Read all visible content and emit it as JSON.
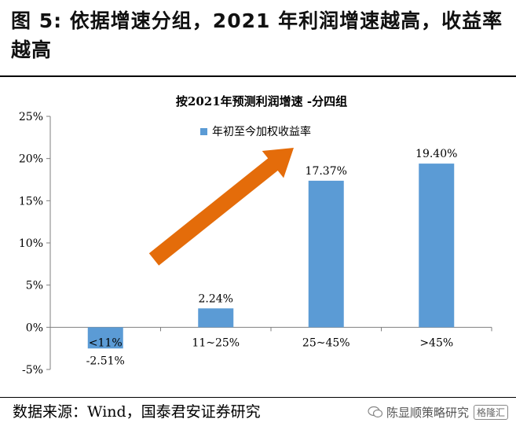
{
  "figure": {
    "title": "图 5: 依据增速分组，2021 年利润增速越高，收益率越高",
    "source": "数据来源：Wind，国泰君安证券研究",
    "watermark_text": "陈显顺策略研究",
    "watermark_badge": "格隆汇",
    "watermark_icon": "wechat-icon"
  },
  "colors": {
    "bar": "#5b9bd5",
    "arrow": "#e46c0a",
    "axis": "#7f7f7f"
  },
  "chart_data": {
    "type": "bar",
    "title": "按2021年预测利润增速 -分四组",
    "categories": [
      "<11%",
      "11~25%",
      "25~45%",
      ">45%"
    ],
    "series": [
      {
        "name": "年初至今加权收益率",
        "values": [
          -2.51,
          2.24,
          17.37,
          19.4
        ],
        "labels": [
          "-2.51%",
          "2.24%",
          "17.37%",
          "19.40%"
        ]
      }
    ],
    "ylim": [
      -5,
      25
    ],
    "yticks": [
      -5,
      0,
      5,
      10,
      15,
      20,
      25
    ],
    "ytick_labels": [
      "-5%",
      "0%",
      "5%",
      "10%",
      "15%",
      "20%",
      "25%"
    ],
    "legend": "top-center",
    "annotation": "upward trend arrow"
  }
}
